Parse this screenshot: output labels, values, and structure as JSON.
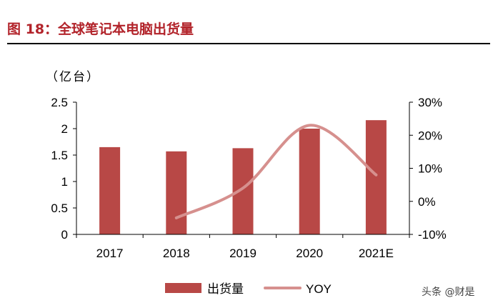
{
  "header": {
    "figure_title": "图 18：全球笔记本电脑出货量"
  },
  "watermark": "头条 @财是",
  "chart_data": {
    "type": "bar+line",
    "unit_label": "（亿台）",
    "categories": [
      "2017",
      "2018",
      "2019",
      "2020",
      "2021E"
    ],
    "series": [
      {
        "name": "出货量",
        "type": "bar",
        "axis": "left",
        "color": "#b84846",
        "values": [
          1.65,
          1.57,
          1.63,
          2.0,
          2.16
        ]
      },
      {
        "name": "YOY",
        "type": "line",
        "axis": "right",
        "color": "#d6908e",
        "values": [
          null,
          -5,
          4,
          23,
          8
        ]
      }
    ],
    "y_left": {
      "min": 0,
      "max": 2.5,
      "ticks": [
        "0",
        "0.5",
        "1",
        "1.5",
        "2",
        "2.5"
      ]
    },
    "y_right": {
      "min": -10,
      "max": 30,
      "ticks": [
        "-10%",
        "0%",
        "10%",
        "20%",
        "30%"
      ]
    },
    "legend_position": "bottom"
  }
}
